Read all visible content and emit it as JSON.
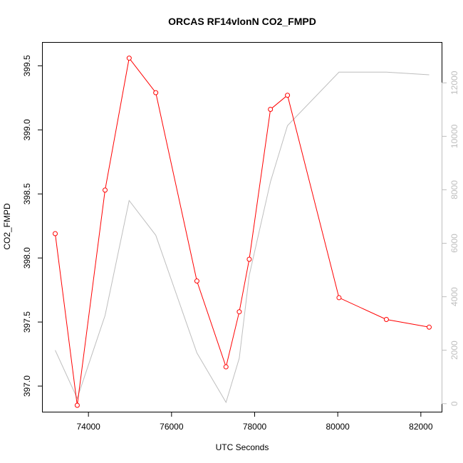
{
  "chart_data": {
    "type": "line",
    "title": "ORCAS RF14vlonN CO2_FMPD",
    "xlabel": "UTC Seconds",
    "ylabel": "CO2_FMPD",
    "y2label": "",
    "xlim": [
      72900,
      82500
    ],
    "ylim": [
      396.8,
      399.68
    ],
    "y2lim": [
      -300,
      13500
    ],
    "xticks": [
      "74000",
      "76000",
      "78000",
      "80000",
      "82000"
    ],
    "yticks": [
      "397.0",
      "397.5",
      "398.0",
      "398.5",
      "399.0",
      "399.5"
    ],
    "y2ticks": [
      "0",
      "2000",
      "4000",
      "6000",
      "8000",
      "10000",
      "12000"
    ],
    "grid": false,
    "legend": "none",
    "series": [
      {
        "axis": "left",
        "color": "#ff0000",
        "marker": "circle",
        "x": [
          73200,
          73730,
          74400,
          74980,
          75620,
          76610,
          77310,
          77630,
          77870,
          78380,
          78790,
          80030,
          81170,
          82200
        ],
        "y": [
          398.19,
          396.85,
          398.53,
          399.56,
          399.29,
          397.82,
          397.15,
          397.58,
          397.99,
          399.16,
          399.27,
          397.69,
          397.52,
          397.46
        ]
      },
      {
        "axis": "right",
        "color": "#bebebe",
        "marker": "none",
        "x": [
          73200,
          73730,
          74400,
          74980,
          75620,
          76610,
          77310,
          77630,
          77870,
          78380,
          78790,
          80030,
          81170,
          82200
        ],
        "y": [
          2000,
          200,
          3300,
          7600,
          6300,
          1900,
          50,
          1700,
          4800,
          8300,
          10400,
          12400,
          12400,
          12300
        ]
      }
    ]
  }
}
